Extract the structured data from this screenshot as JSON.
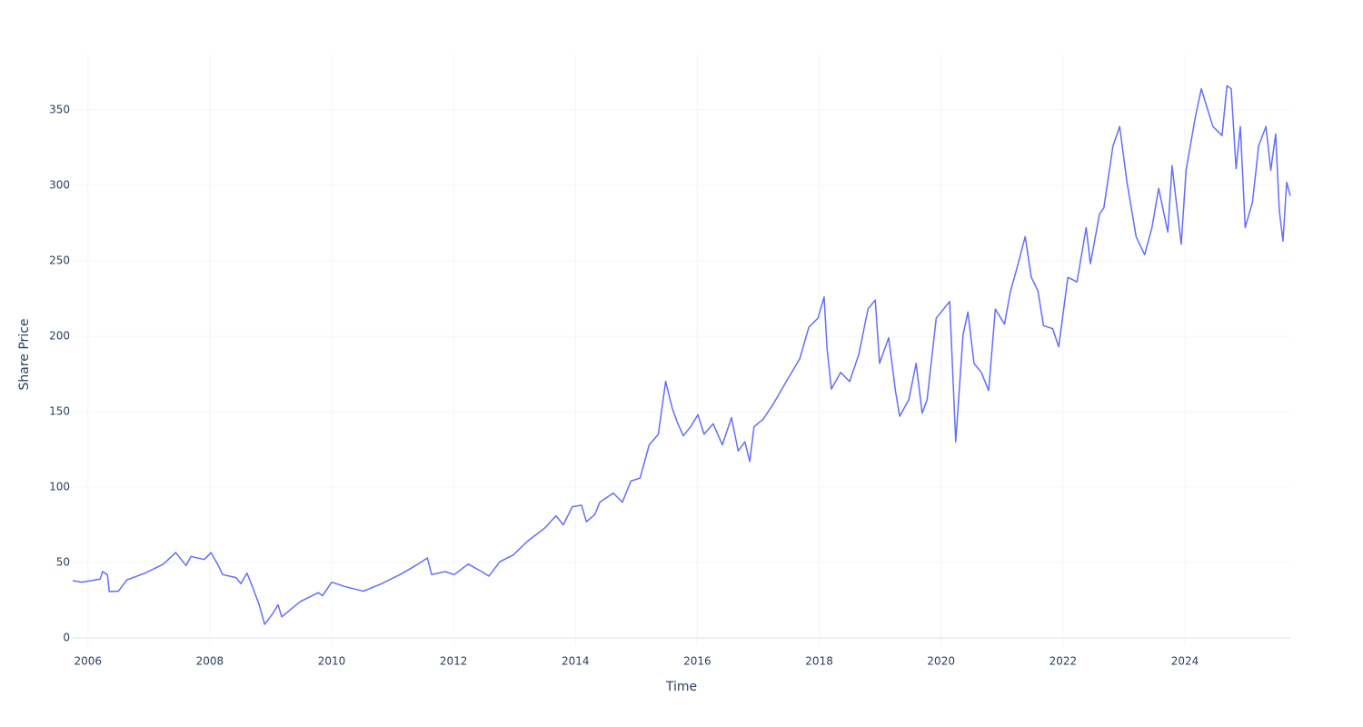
{
  "chart_data": {
    "type": "line",
    "x_label": "Time",
    "y_label": "Share Price",
    "color": "#636efa",
    "grid": true,
    "x": [
      2005.75,
      2005.9,
      2006.2,
      2006.24,
      2006.32,
      2006.35,
      2006.5,
      2006.64,
      2006.94,
      2007.24,
      2007.44,
      2007.61,
      2007.69,
      2007.91,
      2008.02,
      2008.14,
      2008.21,
      2008.43,
      2008.51,
      2008.61,
      2008.7,
      2008.81,
      2008.9,
      2009.03,
      2009.12,
      2009.18,
      2009.48,
      2009.78,
      2009.85,
      2010.0,
      2010.22,
      2010.52,
      2010.82,
      2011.12,
      2011.42,
      2011.57,
      2011.64,
      2011.86,
      2012.01,
      2012.24,
      2012.46,
      2012.58,
      2012.76,
      2012.98,
      2013.21,
      2013.5,
      2013.68,
      2013.8,
      2013.95,
      2014.1,
      2014.18,
      2014.32,
      2014.4,
      2014.62,
      2014.77,
      2014.91,
      2015.06,
      2015.21,
      2015.36,
      2015.48,
      2015.59,
      2015.67,
      2015.77,
      2015.89,
      2016.01,
      2016.11,
      2016.26,
      2016.41,
      2016.56,
      2016.67,
      2016.78,
      2016.86,
      2016.93,
      2017.08,
      2017.23,
      2017.46,
      2017.68,
      2017.83,
      2017.98,
      2018.08,
      2018.13,
      2018.2,
      2018.35,
      2018.5,
      2018.65,
      2018.8,
      2018.92,
      2018.99,
      2019.14,
      2019.25,
      2019.32,
      2019.47,
      2019.59,
      2019.69,
      2019.77,
      2019.92,
      2020.14,
      2020.24,
      2020.36,
      2020.44,
      2020.54,
      2020.66,
      2020.78,
      2020.89,
      2021.04,
      2021.14,
      2021.23,
      2021.38,
      2021.48,
      2021.59,
      2021.68,
      2021.83,
      2021.93,
      2022.08,
      2022.23,
      2022.38,
      2022.45,
      2022.6,
      2022.67,
      2022.82,
      2022.93,
      2023.05,
      2023.2,
      2023.34,
      2023.46,
      2023.57,
      2023.72,
      2023.79,
      2023.94,
      2024.02,
      2024.17,
      2024.27,
      2024.36,
      2024.46,
      2024.61,
      2024.69,
      2024.76,
      2024.84,
      2024.91,
      2024.99,
      2025.11,
      2025.21,
      2025.33,
      2025.41,
      2025.49,
      2025.55,
      2025.61,
      2025.67,
      2025.73
    ],
    "values": [
      38,
      37,
      39,
      44,
      42,
      30.7,
      31,
      38.5,
      43,
      49,
      56.6,
      48,
      54,
      52,
      56.6,
      48,
      42,
      40,
      36,
      43,
      34,
      22,
      9,
      16,
      22,
      14,
      24,
      30,
      28,
      37,
      34,
      31,
      36,
      42,
      49,
      53,
      42,
      44,
      42,
      49,
      44,
      41,
      50.6,
      55,
      64,
      73,
      81,
      75,
      87,
      88,
      77,
      82,
      90,
      96,
      90,
      104,
      106,
      128,
      135,
      170,
      152,
      143,
      134,
      140,
      148,
      135,
      142,
      128,
      146,
      124,
      130,
      117,
      140,
      145,
      154,
      170,
      185,
      206,
      212,
      226,
      191,
      165,
      176,
      170,
      188,
      218,
      224,
      182,
      199,
      164,
      147,
      158,
      182,
      149,
      158,
      212,
      223,
      130,
      201,
      216,
      182,
      176,
      164,
      218,
      208,
      230,
      243,
      266,
      239,
      230,
      207,
      205,
      193,
      239,
      236,
      272,
      248,
      281,
      285,
      326,
      339,
      302,
      266,
      254,
      272,
      298,
      269,
      313,
      261,
      310,
      345,
      364,
      352,
      339,
      333,
      366,
      364,
      311,
      339,
      272,
      289,
      326,
      339,
      310,
      334,
      283,
      263,
      302,
      293
    ],
    "xlim": [
      2005.75,
      2025.73
    ],
    "xticks": [
      2006,
      2008,
      2010,
      2012,
      2014,
      2016,
      2018,
      2020,
      2022,
      2024
    ],
    "ylim": [
      -4.8,
      386.7
    ],
    "yticks": [
      0,
      50,
      100,
      150,
      200,
      250,
      300,
      350
    ]
  }
}
